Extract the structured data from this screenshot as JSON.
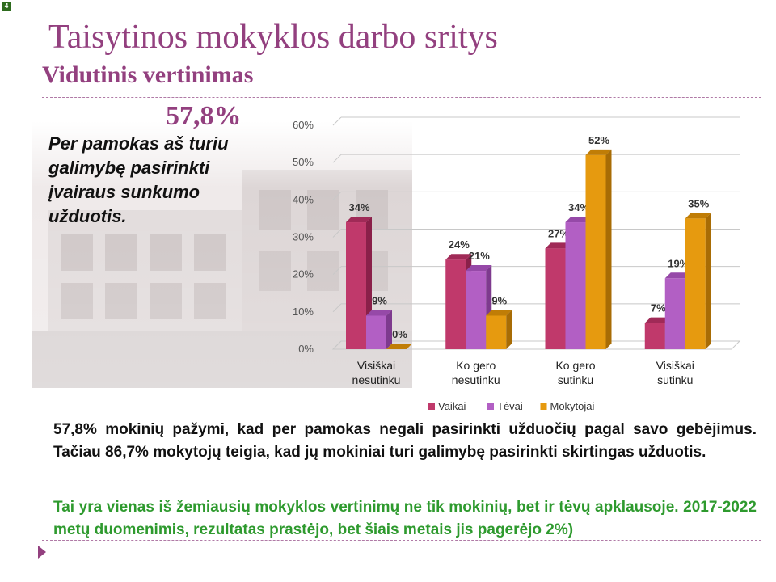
{
  "slide_number": "4",
  "title": "Taisytinos mokyklos darbo sritys",
  "subtitle": "Vidutinis vertinimas",
  "average_value": "57,8%",
  "statement": "Per pamokas aš turiu galimybę pasirinkti įvairaus sunkumo užduotis.",
  "body_text_1": "57,8% mokinių pažymi, kad per pamokas negali pasirinkti užduočių pagal savo gebėjimus. Tačiau 86,7% mokytojų teigia, kad jų mokiniai turi galimybę pasirinkti skirtingas užduotis.",
  "body_text_2": "Tai yra vienas iš žemiausių mokyklos vertinimų ne tik mokinių, bet ir tėvų apklausoje. 2017-2022 metų duomenimis, rezultatas  prastėjo, bet šiais metais jis pagerėjo 2%)",
  "colors": {
    "title": "#93407f",
    "green_text": "#2e9a2e"
  },
  "chart_data": {
    "type": "bar",
    "categories": [
      [
        "Visiškai",
        "nesutinku"
      ],
      [
        "Ko gero",
        "nesutinku"
      ],
      [
        "Ko gero",
        "sutinku"
      ],
      [
        "Visiškai",
        "sutinku"
      ]
    ],
    "series": [
      {
        "name": "Vaikai",
        "values": [
          34,
          24,
          27,
          7
        ],
        "labels": [
          "34%",
          "24%",
          "27%",
          "7%"
        ],
        "color": "#c0396b",
        "top": "#a02a57",
        "side": "#8a2049"
      },
      {
        "name": "Tėvai",
        "values": [
          9,
          21,
          34,
          19
        ],
        "labels": [
          "9%",
          "21%",
          "34%",
          "19%"
        ],
        "color": "#b25fc4",
        "top": "#9649a8",
        "side": "#7e3a8e"
      },
      {
        "name": "Mokytojai",
        "values": [
          0,
          9,
          52,
          35
        ],
        "labels": [
          "0%",
          "9%",
          "52%",
          "35%"
        ],
        "color": "#e69a0f",
        "top": "#c07d06",
        "side": "#a86c05"
      }
    ],
    "yticks": [
      "0%",
      "10%",
      "20%",
      "30%",
      "40%",
      "50%",
      "60%"
    ],
    "ylim": [
      0,
      60
    ],
    "grid": true,
    "legend": "bottom"
  }
}
